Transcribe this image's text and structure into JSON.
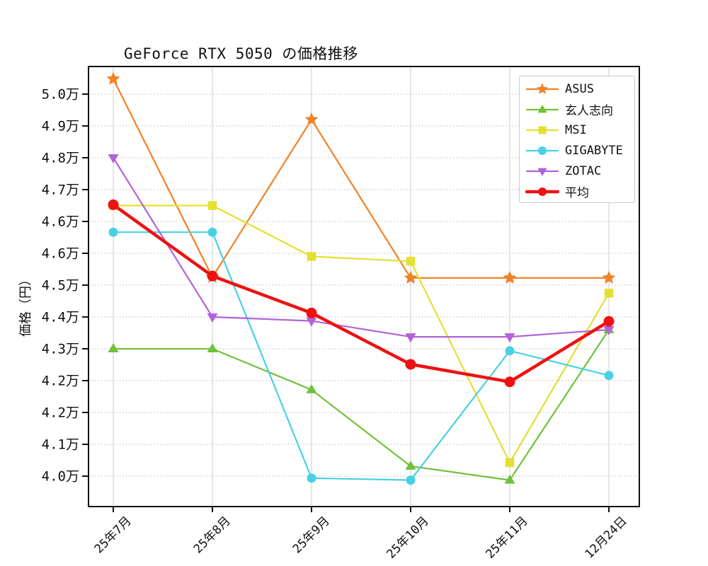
{
  "chart_data": {
    "type": "line",
    "title": "GeForce RTX 5050 の価格推移",
    "xlabel": "",
    "ylabel": "価格（円）",
    "categories": [
      "25年7月",
      "25年8月",
      "25年9月",
      "25年10月",
      "25年11月",
      "12月24日"
    ],
    "series": [
      {
        "name": "ASUS",
        "color": "#f08228",
        "marker": "star",
        "line_width": 2.2,
        "values": [
          49980,
          45000,
          48960,
          44980,
          44980,
          44980
        ]
      },
      {
        "name": "玄人志向",
        "color": "#72c13d",
        "marker": "triangle-up",
        "line_width": 2.2,
        "values": [
          43200,
          43200,
          42170,
          40250,
          39900,
          43680
        ]
      },
      {
        "name": "MSI",
        "color": "#e3e032",
        "marker": "square",
        "line_width": 2.2,
        "values": [
          46800,
          46800,
          45520,
          45400,
          40340,
          44600
        ]
      },
      {
        "name": "GIGABYTE",
        "color": "#47d1e3",
        "marker": "circle",
        "line_width": 2.2,
        "values": [
          46130,
          46130,
          39950,
          39900,
          43150,
          42530
        ]
      },
      {
        "name": "ZOTAC",
        "color": "#b164d8",
        "marker": "triangle-down",
        "line_width": 2.2,
        "values": [
          48000,
          44000,
          43900,
          43500,
          43500,
          43680
        ]
      },
      {
        "name": "平均",
        "color": "#ee1111",
        "marker": "circle",
        "line_width": 4.5,
        "values": [
          46820,
          45030,
          44100,
          42810,
          42370,
          43890
        ]
      }
    ],
    "y_ticks": [
      {
        "value": 49600,
        "label": "5.0万"
      },
      {
        "value": 48800,
        "label": "4.9万"
      },
      {
        "value": 48000,
        "label": "4.8万"
      },
      {
        "value": 47200,
        "label": "4.7万"
      },
      {
        "value": 46400,
        "label": "4.6万"
      },
      {
        "value": 45600,
        "label": "4.6万"
      },
      {
        "value": 44800,
        "label": "4.5万"
      },
      {
        "value": 44000,
        "label": "4.4万"
      },
      {
        "value": 43200,
        "label": "4.3万"
      },
      {
        "value": 42400,
        "label": "4.2万"
      },
      {
        "value": 41600,
        "label": "4.2万"
      },
      {
        "value": 40800,
        "label": "4.1万"
      },
      {
        "value": 40000,
        "label": "4.0万"
      }
    ],
    "ylim": [
      39230,
      50240
    ],
    "grid": true,
    "legend_position": "upper right"
  }
}
